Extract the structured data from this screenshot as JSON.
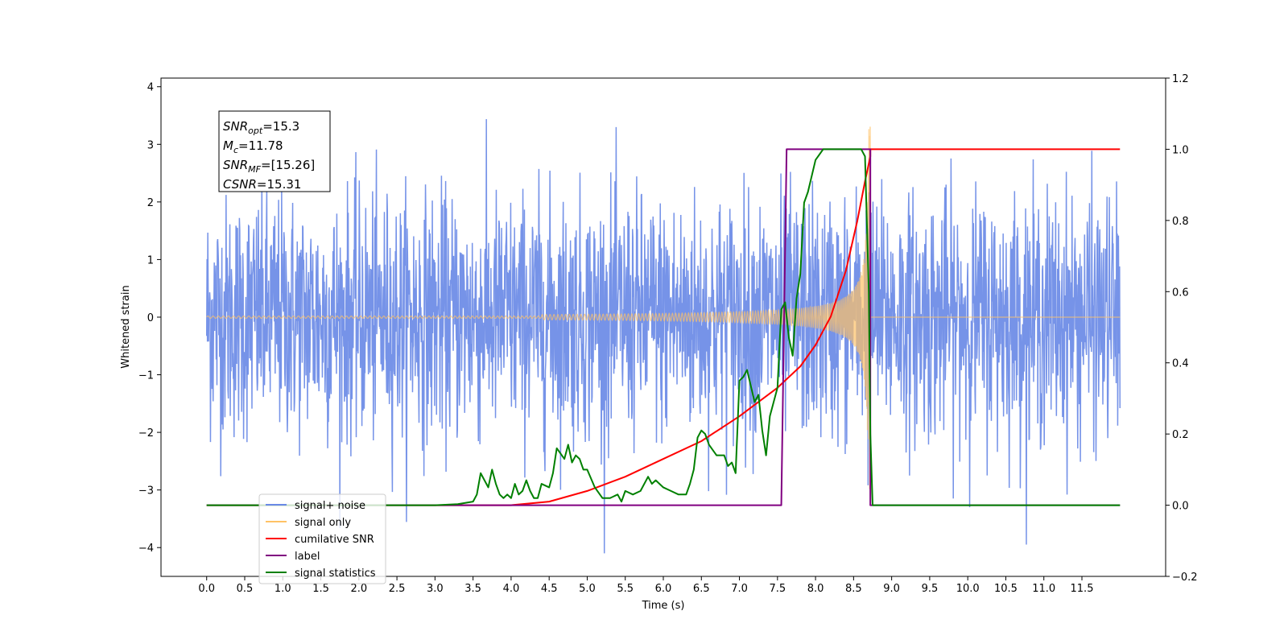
{
  "chart_data": {
    "type": "line",
    "xlabel": "Time (s)",
    "ylabel": "Whitened strain",
    "xlim": [
      -0.6,
      12.6
    ],
    "ylim": [
      -4.5,
      4.15
    ],
    "y2lim": [
      -0.2,
      1.2
    ],
    "x_ticks": [
      "0.0",
      "0.5",
      "1.0",
      "1.5",
      "2.0",
      "2.5",
      "3.0",
      "3.5",
      "4.0",
      "4.5",
      "5.0",
      "5.5",
      "6.0",
      "6.5",
      "7.0",
      "7.5",
      "8.0",
      "8.5",
      "9.0",
      "9.5",
      "10.0",
      "10.5",
      "11.0",
      "11.5"
    ],
    "y_ticks": [
      "4",
      "3",
      "2",
      "1",
      "0",
      "−1",
      "−2",
      "−3",
      "−4"
    ],
    "y2_ticks": [
      "1.2",
      "1.0",
      "0.8",
      "0.6",
      "0.4",
      "0.2",
      "0.0",
      "−0.2"
    ],
    "annotation": {
      "lines": [
        {
          "label": "SNR",
          "sub": "opt",
          "value": "=15.3"
        },
        {
          "label": "M",
          "sub": "c",
          "value": "=11.78"
        },
        {
          "label": "SNR",
          "sub": "MF",
          "value": "=[15.26]"
        },
        {
          "label": "CSNR",
          "sub": "",
          "value": "=15.31"
        }
      ]
    },
    "legend": {
      "position": "lower-left",
      "entries": [
        {
          "name": "signal+ noise",
          "color": "#6a8ae6"
        },
        {
          "name": "signal only",
          "color": "#ffc266"
        },
        {
          "name": "cumilative SNR",
          "color": "#ff0000"
        },
        {
          "name": "label",
          "color": "#800080"
        },
        {
          "name": "signal statistics",
          "color": "#008000"
        }
      ]
    },
    "series": [
      {
        "name": "signal+ noise",
        "axis": "left",
        "color": "#6a8ae6",
        "x_range": [
          0.0,
          12.0
        ],
        "noise_amplitude": 1.0,
        "typical_extremes": [
          -3.6,
          3.7
        ]
      },
      {
        "name": "signal only",
        "axis": "left",
        "color": "#ffc266",
        "x_range": [
          0.0,
          12.0
        ],
        "chirp_start": 4.4,
        "chirp_end": 8.72,
        "peak_amplitude": 3.3
      },
      {
        "name": "cumilative SNR",
        "axis": "right",
        "color": "#ff0000",
        "x": [
          0.0,
          3.0,
          4.0,
          4.5,
          5.0,
          5.5,
          6.0,
          6.5,
          7.0,
          7.5,
          7.8,
          8.0,
          8.2,
          8.4,
          8.55,
          8.65,
          8.7,
          8.72,
          8.72,
          12.0
        ],
        "y": [
          0.0,
          0.0,
          0.0,
          0.01,
          0.04,
          0.08,
          0.13,
          0.18,
          0.25,
          0.33,
          0.39,
          0.45,
          0.53,
          0.66,
          0.8,
          0.91,
          0.96,
          0.98,
          1.0,
          1.0
        ]
      },
      {
        "name": "label",
        "axis": "right",
        "color": "#800080",
        "x": [
          0.0,
          7.55,
          7.62,
          8.72,
          8.72,
          12.0
        ],
        "y": [
          0.0,
          0.0,
          1.0,
          1.0,
          0.0,
          0.0
        ]
      },
      {
        "name": "signal statistics",
        "axis": "right",
        "color": "#008000",
        "x": [
          0.0,
          3.0,
          3.3,
          3.5,
          3.55,
          3.6,
          3.7,
          3.75,
          3.8,
          3.85,
          3.9,
          3.95,
          4.0,
          4.05,
          4.1,
          4.15,
          4.2,
          4.25,
          4.3,
          4.35,
          4.4,
          4.5,
          4.55,
          4.6,
          4.7,
          4.75,
          4.8,
          4.85,
          4.9,
          4.95,
          5.0,
          5.1,
          5.2,
          5.3,
          5.4,
          5.45,
          5.5,
          5.6,
          5.7,
          5.8,
          5.85,
          5.9,
          6.0,
          6.1,
          6.2,
          6.3,
          6.35,
          6.4,
          6.45,
          6.5,
          6.55,
          6.6,
          6.7,
          6.8,
          6.85,
          6.9,
          6.95,
          7.0,
          7.05,
          7.1,
          7.2,
          7.25,
          7.3,
          7.35,
          7.4,
          7.5,
          7.55,
          7.6,
          7.65,
          7.7,
          7.75,
          7.8,
          7.85,
          7.9,
          8.0,
          8.1,
          8.2,
          8.5,
          8.6,
          8.65,
          8.7,
          8.72,
          8.75,
          12.0
        ],
        "y": [
          0.0,
          0.0,
          0.003,
          0.01,
          0.03,
          0.09,
          0.05,
          0.1,
          0.06,
          0.03,
          0.02,
          0.03,
          0.02,
          0.06,
          0.03,
          0.04,
          0.07,
          0.04,
          0.02,
          0.02,
          0.06,
          0.05,
          0.09,
          0.16,
          0.13,
          0.17,
          0.12,
          0.14,
          0.13,
          0.1,
          0.1,
          0.05,
          0.02,
          0.02,
          0.03,
          0.01,
          0.04,
          0.03,
          0.04,
          0.08,
          0.06,
          0.07,
          0.05,
          0.04,
          0.03,
          0.03,
          0.06,
          0.1,
          0.19,
          0.21,
          0.2,
          0.17,
          0.14,
          0.14,
          0.11,
          0.12,
          0.09,
          0.35,
          0.36,
          0.38,
          0.29,
          0.31,
          0.21,
          0.14,
          0.25,
          0.33,
          0.55,
          0.57,
          0.47,
          0.42,
          0.58,
          0.65,
          0.85,
          0.88,
          0.97,
          1.0,
          1.0,
          1.0,
          1.0,
          0.98,
          0.6,
          0.2,
          0.0,
          0.0
        ]
      }
    ]
  }
}
